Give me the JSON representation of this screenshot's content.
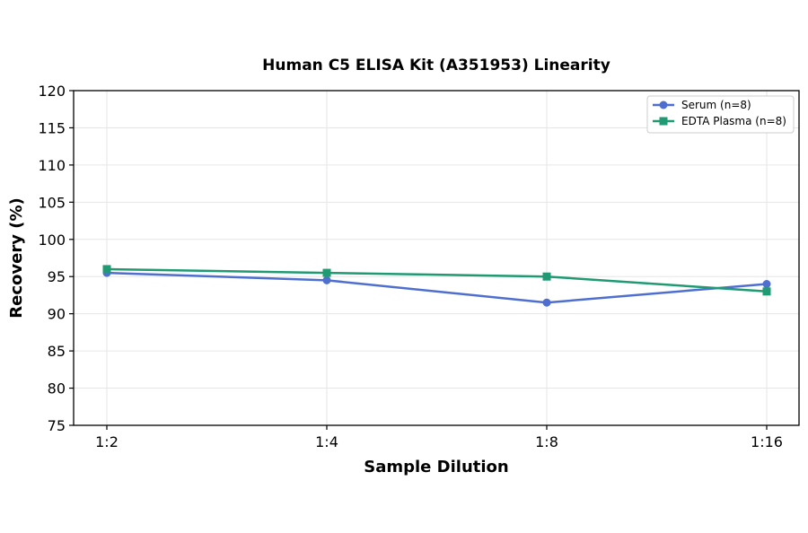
{
  "chart_data": {
    "type": "line",
    "title": "Human C5 ELISA Kit (A351953) Linearity",
    "xlabel": "Sample Dilution",
    "ylabel": "Recovery (%)",
    "categories": [
      "1:2",
      "1:4",
      "1:8",
      "1:16"
    ],
    "ylim": [
      75,
      120
    ],
    "yticks": [
      75,
      80,
      85,
      90,
      95,
      100,
      105,
      110,
      115,
      120
    ],
    "grid": true,
    "legend_position": "top-right",
    "series": [
      {
        "name": "Serum (n=8)",
        "values": [
          95.5,
          94.5,
          91.5,
          94.0
        ],
        "color": "#4e6fd0",
        "marker": "circle"
      },
      {
        "name": "EDTA Plasma (n=8)",
        "values": [
          96.0,
          95.5,
          95.0,
          93.0
        ],
        "color": "#1f9a72",
        "marker": "square"
      }
    ]
  }
}
